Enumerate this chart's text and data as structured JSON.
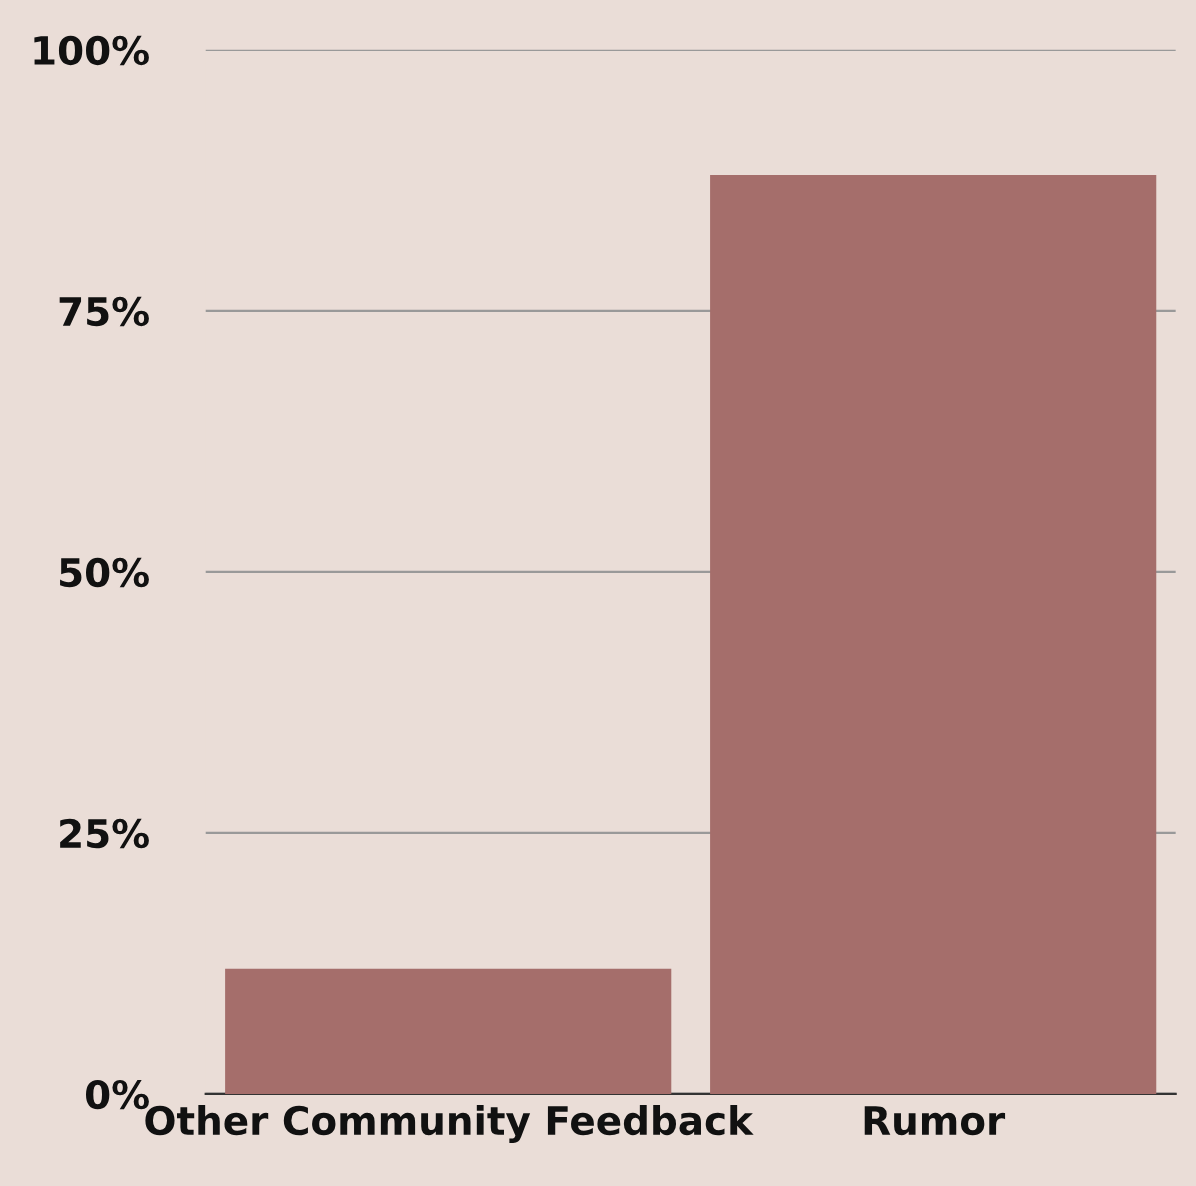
{
  "chart_data": {
    "type": "bar",
    "categories": [
      "Other Community Feedback",
      "Rumor"
    ],
    "values": [
      12,
      88
    ],
    "color": "#a56e6b",
    "ylim": [
      0,
      100
    ],
    "yticks": [
      {
        "value": 0,
        "label": "0%"
      },
      {
        "value": 25,
        "label": "25%"
      },
      {
        "value": 50,
        "label": "50%"
      },
      {
        "value": 75,
        "label": "75%"
      },
      {
        "value": 100,
        "label": "100%"
      }
    ],
    "grid": "y"
  }
}
